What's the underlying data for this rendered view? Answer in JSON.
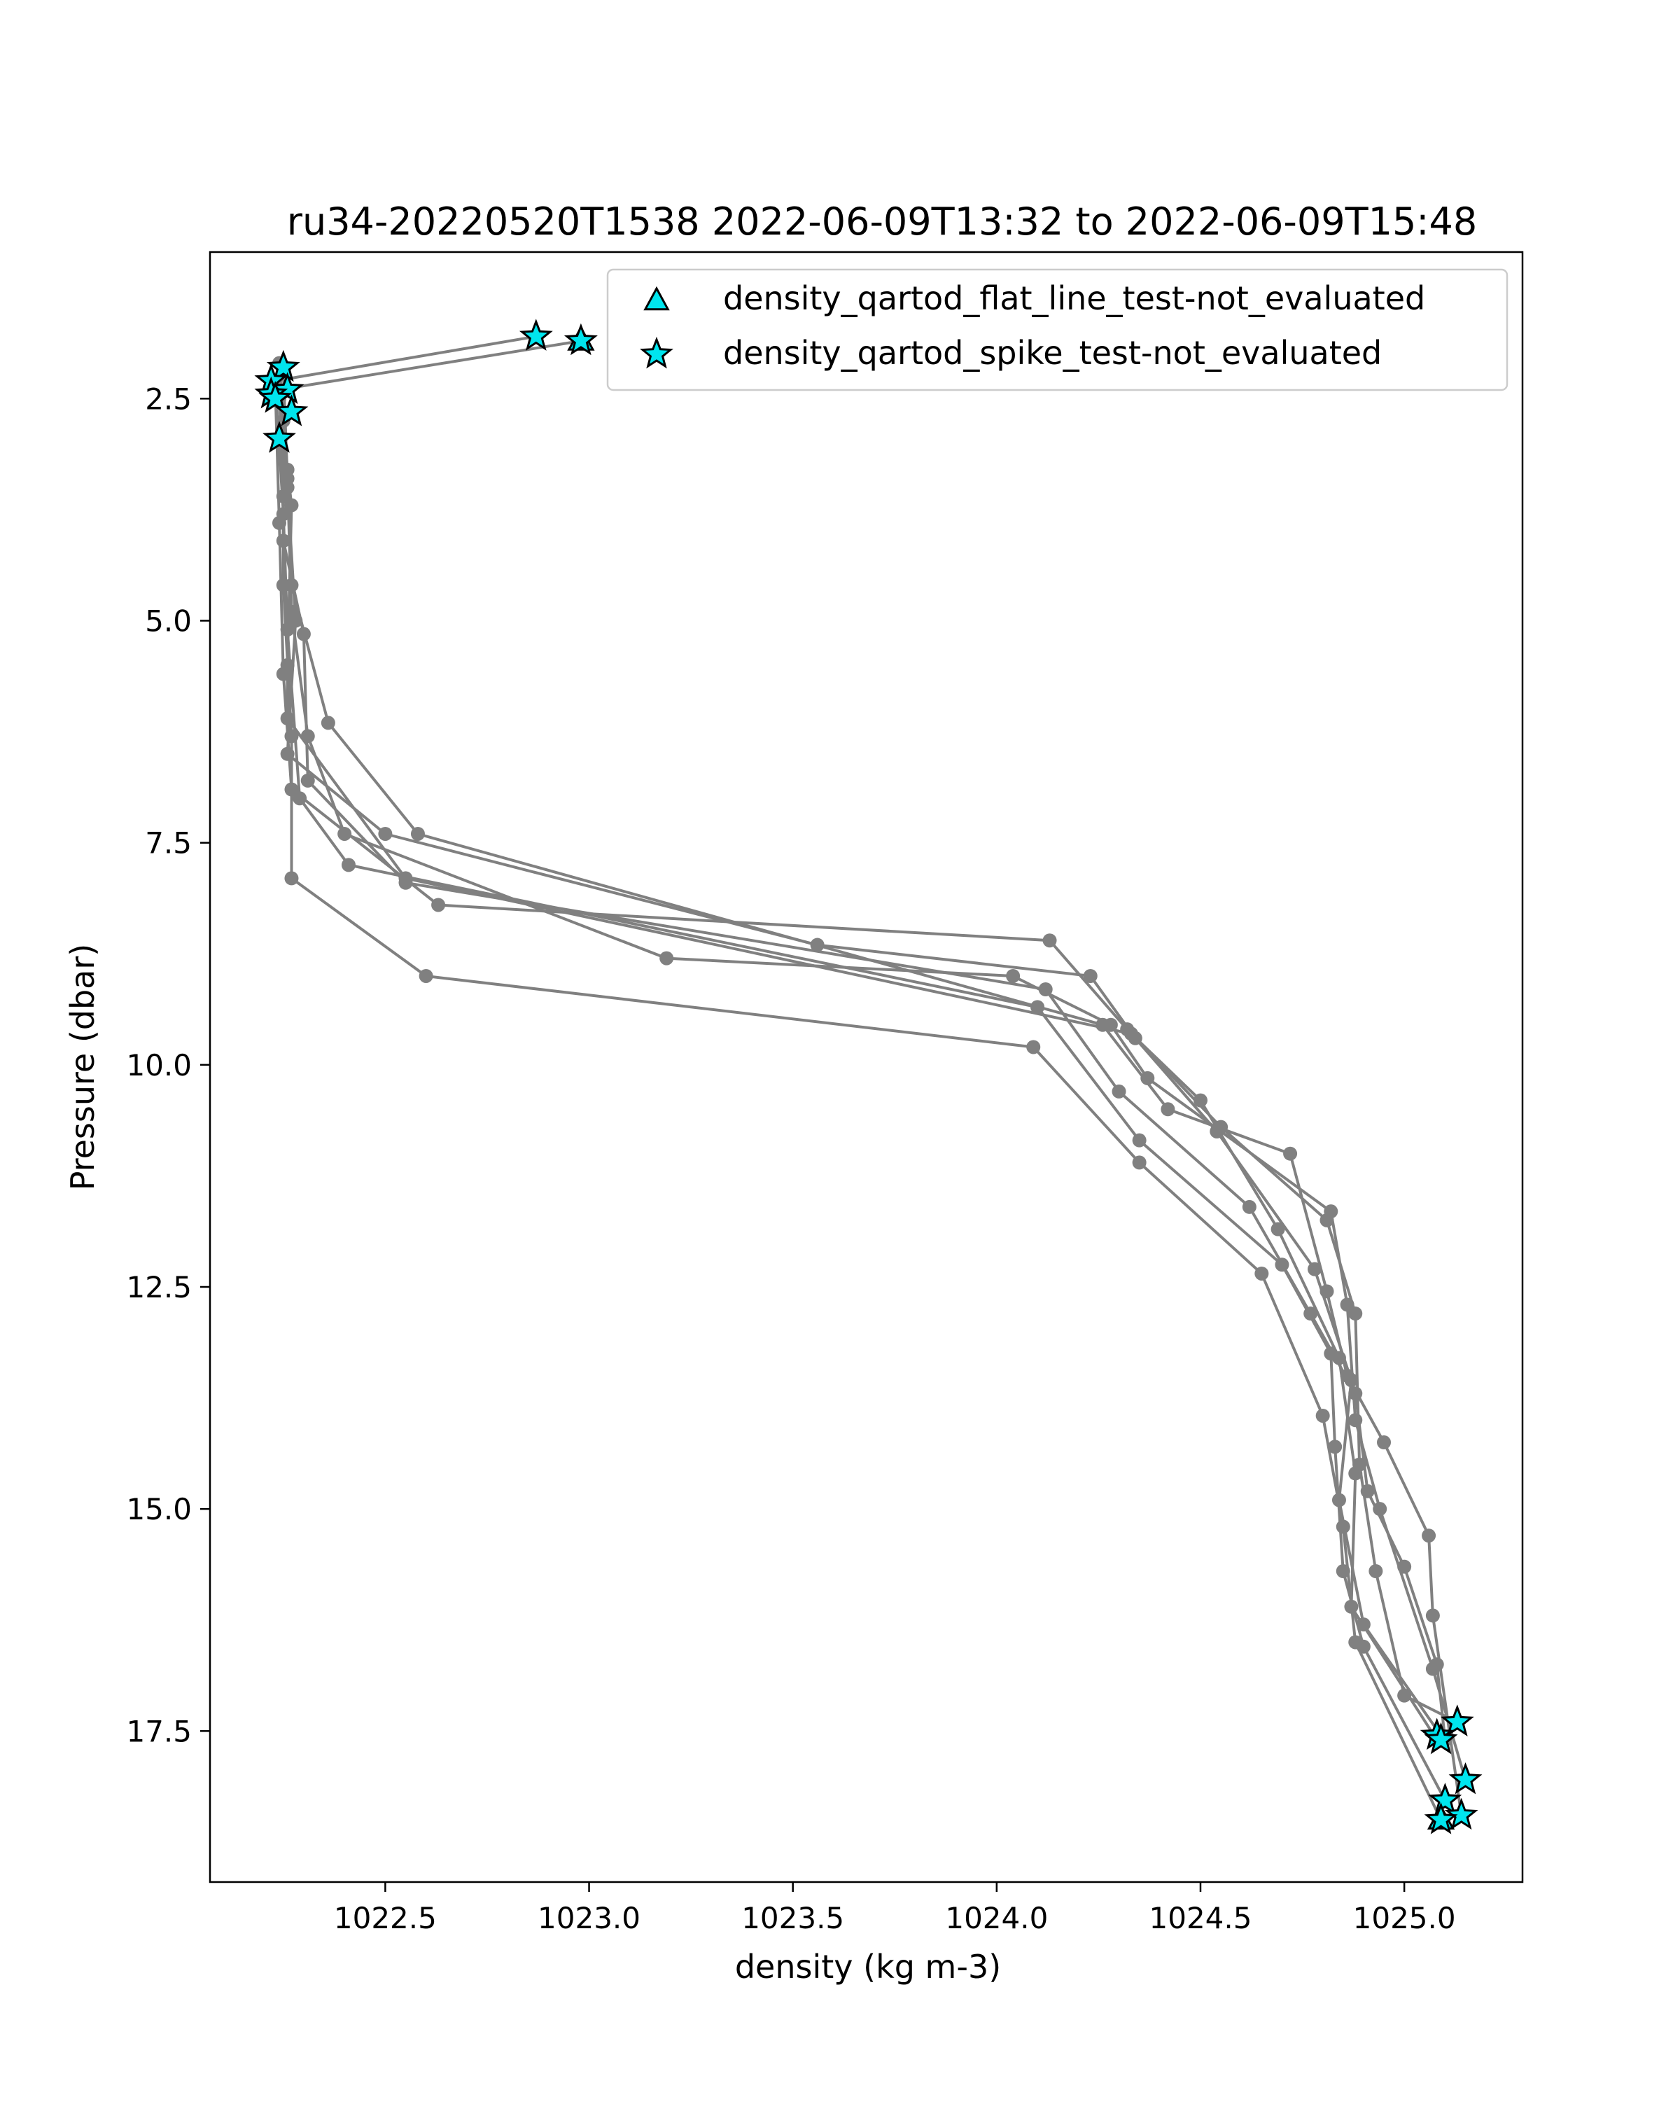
{
  "chart_data": {
    "type": "line",
    "title": "ru34-20220520T1538 2022-06-09T13:32 to 2022-06-09T15:48",
    "xlabel": "density (kg m-3)",
    "ylabel": "Pressure (dbar)",
    "xlim": [
      1022.07,
      1025.29
    ],
    "ylim": [
      19.2,
      0.85
    ],
    "y_inverted": true,
    "x_ticks": [
      1022.5,
      1023.0,
      1023.5,
      1024.0,
      1024.5,
      1025.0
    ],
    "x_tick_labels": [
      "1022.5",
      "1023.0",
      "1023.5",
      "1024.0",
      "1024.5",
      "1025.0"
    ],
    "y_ticks": [
      2.5,
      5.0,
      7.5,
      10.0,
      12.5,
      15.0,
      17.5
    ],
    "y_tick_labels": [
      "2.5",
      "5.0",
      "7.5",
      "10.0",
      "12.5",
      "15.0",
      "17.5"
    ],
    "grid": false,
    "legend_position": "top-right",
    "colors": {
      "profile_line": "#808080",
      "flag_fill": "#00e5ee",
      "flag_edge": "#000000"
    },
    "legend": [
      {
        "label": "density_qartod_flat_line_test-not_evaluated",
        "marker": "triangle"
      },
      {
        "label": "density_qartod_spike_test-not_evaluated",
        "marker": "star"
      }
    ],
    "series": [
      {
        "points": [
          [
            1022.98,
            1.85
          ],
          [
            1022.24,
            2.4
          ],
          [
            1022.25,
            3.6
          ],
          [
            1022.25,
            4.6
          ],
          [
            1022.27,
            6.3
          ],
          [
            1022.27,
            7.9
          ],
          [
            1022.6,
            9.0
          ],
          [
            1024.09,
            9.8
          ],
          [
            1024.35,
            11.1
          ],
          [
            1024.65,
            12.35
          ],
          [
            1024.8,
            13.95
          ],
          [
            1024.85,
            15.2
          ],
          [
            1024.88,
            16.5
          ],
          [
            1025.09,
            18.5
          ]
        ]
      },
      {
        "points": [
          [
            1022.87,
            1.8
          ],
          [
            1022.23,
            2.3
          ],
          [
            1022.25,
            3.8
          ],
          [
            1022.26,
            5.1
          ],
          [
            1022.29,
            7.0
          ],
          [
            1022.41,
            7.75
          ],
          [
            1024.1,
            9.35
          ],
          [
            1024.35,
            10.85
          ],
          [
            1024.7,
            12.25
          ],
          [
            1024.82,
            13.25
          ],
          [
            1024.83,
            14.3
          ],
          [
            1024.85,
            15.7
          ],
          [
            1024.9,
            16.55
          ],
          [
            1025.1,
            18.28
          ]
        ]
      },
      {
        "points": [
          [
            1022.24,
            2.45
          ],
          [
            1022.26,
            3.5
          ],
          [
            1022.28,
            5.0
          ],
          [
            1022.26,
            6.5
          ],
          [
            1022.5,
            7.4
          ],
          [
            1023.56,
            8.65
          ],
          [
            1024.23,
            9.0
          ],
          [
            1024.34,
            9.7
          ],
          [
            1024.54,
            10.75
          ],
          [
            1024.78,
            12.3
          ],
          [
            1024.87,
            13.55
          ],
          [
            1024.84,
            14.9
          ],
          [
            1024.9,
            16.3
          ],
          [
            1025.09,
            17.55
          ]
        ]
      },
      {
        "points": [
          [
            1022.25,
            2.2
          ],
          [
            1022.26,
            3.4
          ],
          [
            1022.27,
            4.9
          ],
          [
            1022.31,
            6.3
          ],
          [
            1022.4,
            7.4
          ],
          [
            1023.19,
            8.8
          ],
          [
            1024.04,
            9.0
          ],
          [
            1024.28,
            9.55
          ],
          [
            1024.37,
            10.15
          ],
          [
            1024.82,
            11.65
          ],
          [
            1024.86,
            12.7
          ],
          [
            1024.88,
            14.0
          ],
          [
            1024.94,
            15.0
          ],
          [
            1025.07,
            16.8
          ],
          [
            1025.15,
            18.05
          ]
        ]
      },
      {
        "points": [
          [
            1022.23,
            2.35
          ],
          [
            1022.24,
            3.9
          ],
          [
            1022.25,
            5.6
          ],
          [
            1022.27,
            6.9
          ],
          [
            1022.63,
            8.2
          ],
          [
            1024.13,
            8.6
          ],
          [
            1024.32,
            9.6
          ],
          [
            1024.55,
            10.7
          ],
          [
            1024.81,
            11.75
          ],
          [
            1024.88,
            12.8
          ],
          [
            1024.89,
            14.5
          ],
          [
            1024.93,
            15.7
          ],
          [
            1025.0,
            17.1
          ],
          [
            1025.13,
            17.4
          ]
        ]
      },
      {
        "points": [
          [
            1022.24,
            2.1
          ],
          [
            1022.26,
            3.3
          ],
          [
            1022.27,
            4.6
          ],
          [
            1022.36,
            6.15
          ],
          [
            1022.58,
            7.4
          ],
          [
            1024.26,
            9.55
          ],
          [
            1024.42,
            10.5
          ],
          [
            1024.72,
            11.0
          ],
          [
            1024.81,
            12.55
          ],
          [
            1024.86,
            13.5
          ],
          [
            1024.95,
            14.25
          ],
          [
            1025.06,
            15.3
          ],
          [
            1025.07,
            16.2
          ],
          [
            1025.14,
            18.45
          ]
        ]
      },
      {
        "points": [
          [
            1022.25,
            2.75
          ],
          [
            1022.25,
            4.1
          ],
          [
            1022.3,
            5.15
          ],
          [
            1022.31,
            6.8
          ],
          [
            1022.55,
            7.95
          ],
          [
            1024.12,
            9.15
          ],
          [
            1024.3,
            10.3
          ],
          [
            1024.62,
            11.6
          ],
          [
            1024.77,
            12.8
          ],
          [
            1024.88,
            13.7
          ],
          [
            1024.91,
            14.8
          ],
          [
            1025.0,
            15.65
          ],
          [
            1025.08,
            16.75
          ],
          [
            1025.1,
            17.6
          ]
        ]
      },
      {
        "points": [
          [
            1022.24,
            2.5
          ],
          [
            1022.27,
            3.7
          ],
          [
            1022.26,
            5.5
          ],
          [
            1022.26,
            6.1
          ],
          [
            1022.55,
            7.9
          ],
          [
            1024.33,
            9.65
          ],
          [
            1024.5,
            10.4
          ],
          [
            1024.69,
            11.85
          ],
          [
            1024.84,
            13.3
          ],
          [
            1024.88,
            14.6
          ],
          [
            1024.87,
            16.1
          ],
          [
            1025.08,
            17.6
          ]
        ]
      }
    ],
    "flag_markers": {
      "spike_test_not_evaluated": [
        [
          1022.87,
          1.8
        ],
        [
          1022.98,
          1.85
        ],
        [
          1022.25,
          2.15
        ],
        [
          1022.22,
          2.3
        ],
        [
          1022.26,
          2.4
        ],
        [
          1022.22,
          2.45
        ],
        [
          1022.23,
          2.5
        ],
        [
          1022.27,
          2.65
        ],
        [
          1022.24,
          2.95
        ],
        [
          1025.13,
          17.4
        ],
        [
          1025.08,
          17.55
        ],
        [
          1025.09,
          17.6
        ],
        [
          1025.15,
          18.05
        ],
        [
          1025.1,
          18.28
        ],
        [
          1025.14,
          18.45
        ],
        [
          1025.09,
          18.5
        ]
      ],
      "flat_line_test_not_evaluated": [
        [
          1022.98,
          1.85
        ],
        [
          1025.09,
          18.5
        ]
      ]
    }
  }
}
